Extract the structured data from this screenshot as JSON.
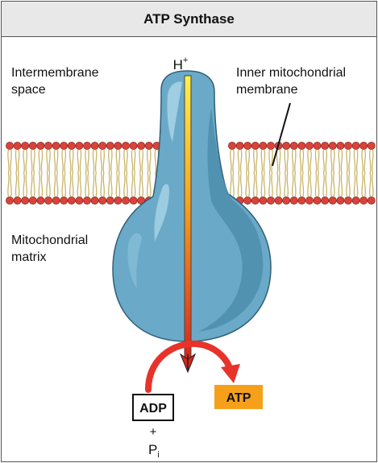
{
  "title": "ATP Synthase",
  "labels": {
    "intermembrane_line1": "Intermembrane",
    "intermembrane_line2": "space",
    "inner_line1": "Inner mitochondrial",
    "inner_line2": "membrane",
    "matrix_line1": "Mitochondrial",
    "matrix_line2": "matrix",
    "proton": "H",
    "proton_charge": "+",
    "adp": "ADP",
    "plus": "+",
    "phosphate": "P",
    "phosphate_sub": "i",
    "atp": "ATP"
  },
  "colors": {
    "protein": "#6aaac8",
    "protein_dark": "#4f8fae",
    "lipid_head": "#d8433a",
    "lipid_tail": "#c9b56a",
    "arrow_red": "#e8332a",
    "atp_box": "#f6a01a",
    "title_bg": "#e8e8e8"
  }
}
